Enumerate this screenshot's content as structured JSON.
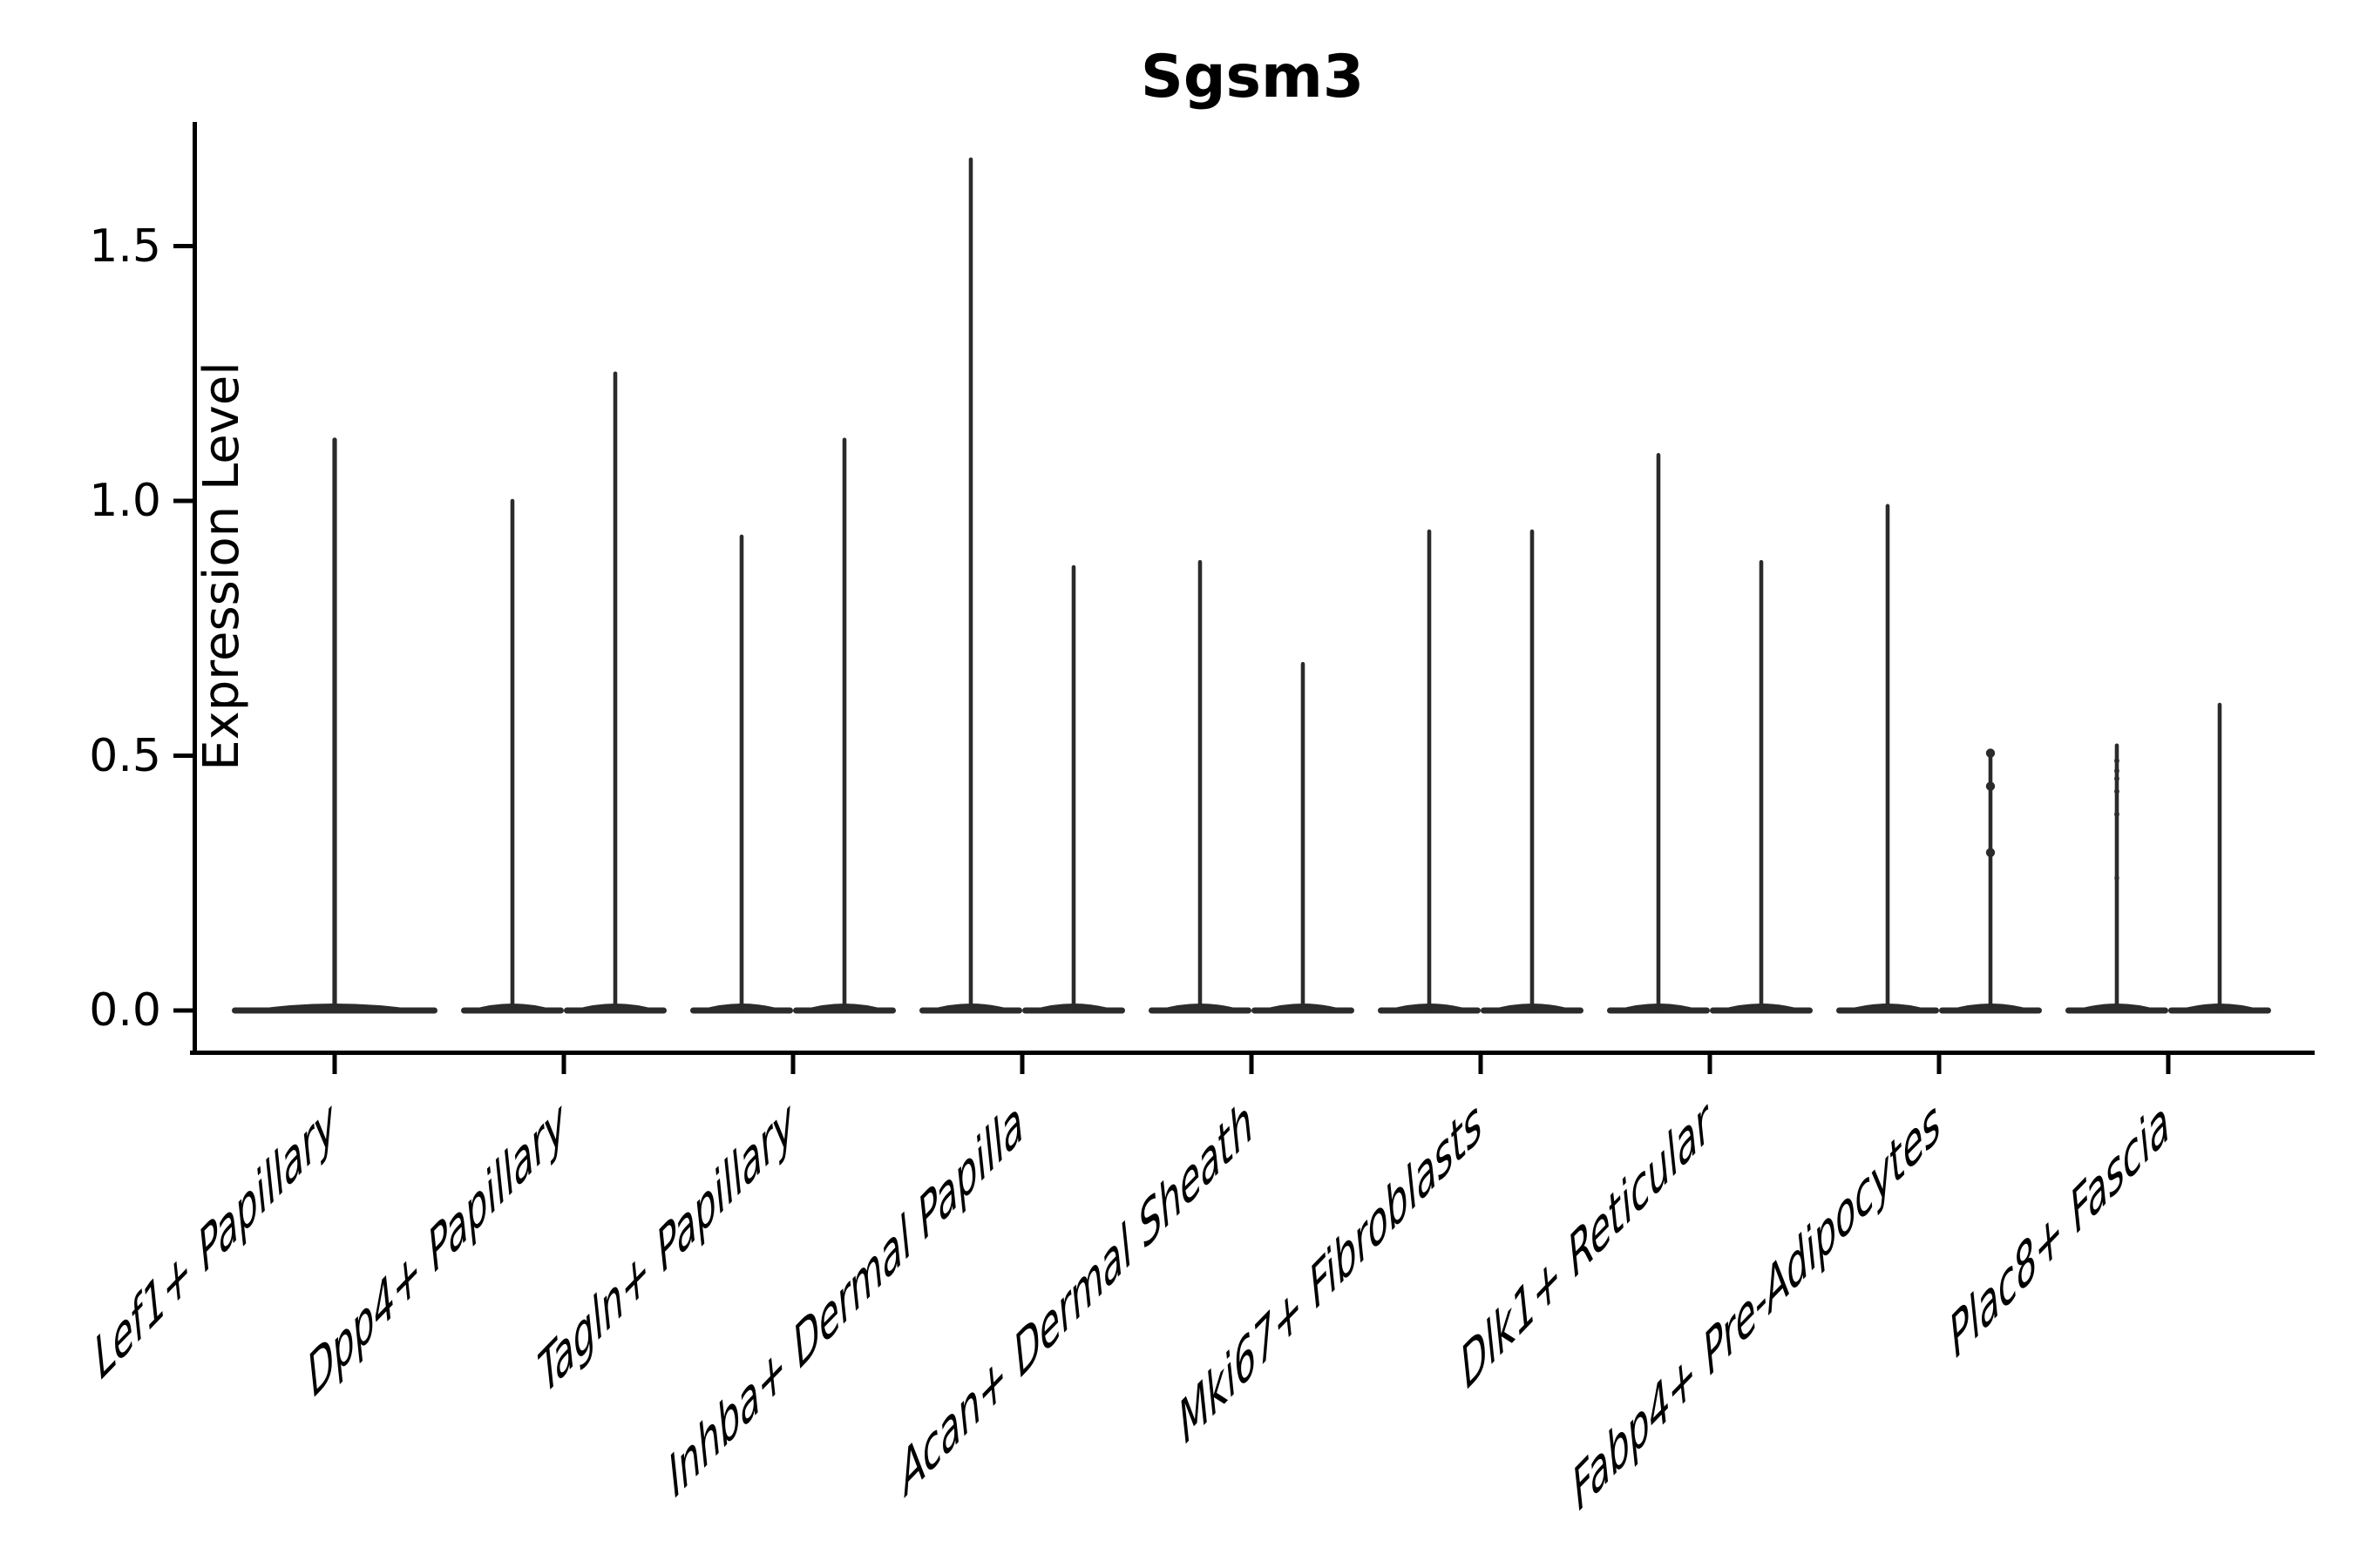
{
  "title": "Sgsm3",
  "y_axis": {
    "label": "Expression Level",
    "ticks": [
      {
        "label": "1.5",
        "value": 1.5
      },
      {
        "label": "1.0",
        "value": 1.0
      },
      {
        "label": "0.5",
        "value": 0.5
      },
      {
        "label": "0.0",
        "value": 0.0
      }
    ]
  },
  "colors": {
    "background": "#ffffff",
    "axis_ink": "#000000",
    "violin_ink": "#2b2b2b"
  },
  "chart_data": {
    "type": "violin",
    "title": "Sgsm3",
    "xlabel": "",
    "ylabel": "Expression Level",
    "ylim": [
      -0.08,
      1.74
    ],
    "yticks": [
      0.0,
      0.5,
      1.0,
      1.5
    ],
    "grid": false,
    "legend": "none",
    "description": "Needle-shaped expression violins; wide flat base at 0, thin spike to max expression. First category shows a single full-width violin, all others two side-by-side violins.",
    "categories": [
      "Lef1+ Papillary",
      "Dpp4+ Papillary",
      "Tagln+ Papillary",
      "Inhba+ Dermal Papilla",
      "Acan+ Dermal Sheath",
      "Mki67+ Fibroblasts",
      "Dlk1+ Reticular",
      "Fabp4+ Pre-Adipocytes",
      "Plac8+ Fascia"
    ],
    "violins": [
      {
        "category": "Lef1+ Papillary",
        "needles": [
          {
            "max": 1.12,
            "dots": []
          }
        ]
      },
      {
        "category": "Dpp4+ Papillary",
        "needles": [
          {
            "max": 1.0,
            "dots": []
          },
          {
            "max": 1.25,
            "dots": []
          }
        ]
      },
      {
        "category": "Tagln+ Papillary",
        "needles": [
          {
            "max": 0.93,
            "dots": []
          },
          {
            "max": 1.12,
            "dots": []
          }
        ]
      },
      {
        "category": "Inhba+ Dermal Papilla",
        "needles": [
          {
            "max": 1.67,
            "dots": []
          },
          {
            "max": 0.87,
            "dots": []
          }
        ]
      },
      {
        "category": "Acan+ Dermal Sheath",
        "needles": [
          {
            "max": 0.88,
            "dots": []
          },
          {
            "max": 0.68,
            "dots": []
          }
        ]
      },
      {
        "category": "Mki67+ Fibroblasts",
        "needles": [
          {
            "max": 0.94,
            "dots": []
          },
          {
            "max": 0.94,
            "dots": []
          }
        ]
      },
      {
        "category": "Dlk1+ Reticular",
        "needles": [
          {
            "max": 1.09,
            "dots": []
          },
          {
            "max": 0.88,
            "dots": []
          }
        ]
      },
      {
        "category": "Fabp4+ Pre-Adipocytes",
        "needles": [
          {
            "max": 0.99,
            "dots": []
          },
          {
            "max": 0.51,
            "dots": [
              0.505,
              0.44,
              0.31
            ]
          }
        ]
      },
      {
        "category": "Plac8+ Fascia",
        "needles": [
          {
            "max": 0.52,
            "dots": [
              0.49,
              0.47,
              0.455,
              0.43,
              0.385,
              0.26
            ]
          },
          {
            "max": 0.6,
            "dots": []
          }
        ]
      }
    ]
  }
}
